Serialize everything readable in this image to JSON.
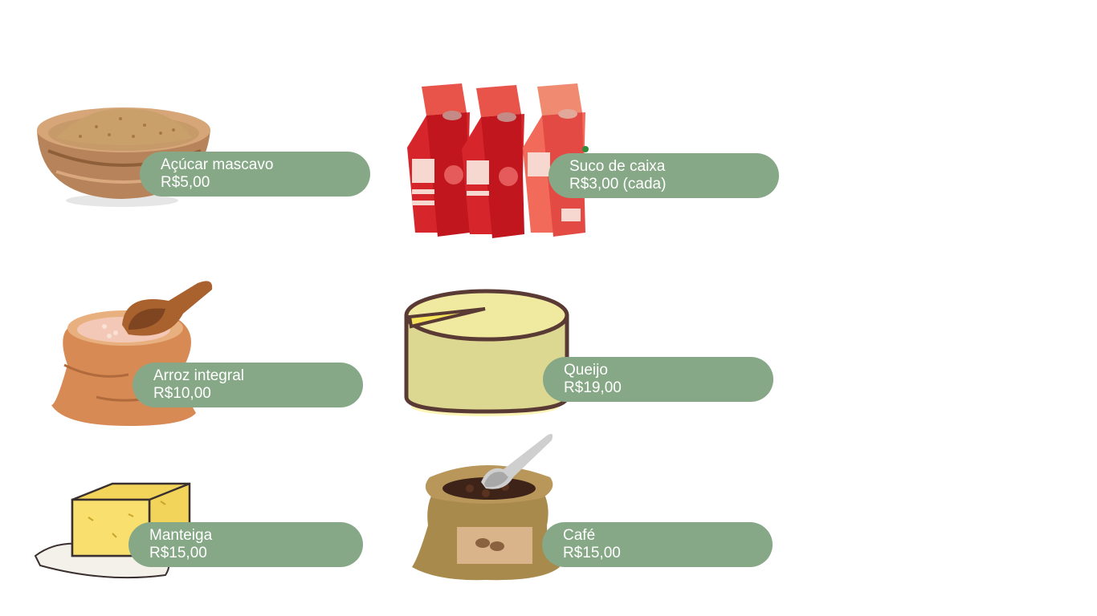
{
  "colors": {
    "tag_background": "#87a887",
    "tag_text": "#ffffff",
    "background": "#ffffff"
  },
  "products": [
    {
      "name": "Açúcar mascavo",
      "price": "R$5,00",
      "icon": "sugar-bowl-icon"
    },
    {
      "name": "Suco de caixa",
      "price": "R$3,00 (cada)",
      "icon": "juice-box-icon"
    },
    {
      "name": "Arroz integral",
      "price": "R$10,00",
      "icon": "rice-sack-icon"
    },
    {
      "name": "Queijo",
      "price": "R$19,00",
      "icon": "cheese-wheel-icon"
    },
    {
      "name": "Manteiga",
      "price": "R$15,00",
      "icon": "butter-block-icon"
    },
    {
      "name": "Café",
      "price": "R$15,00",
      "icon": "coffee-sack-icon"
    }
  ]
}
